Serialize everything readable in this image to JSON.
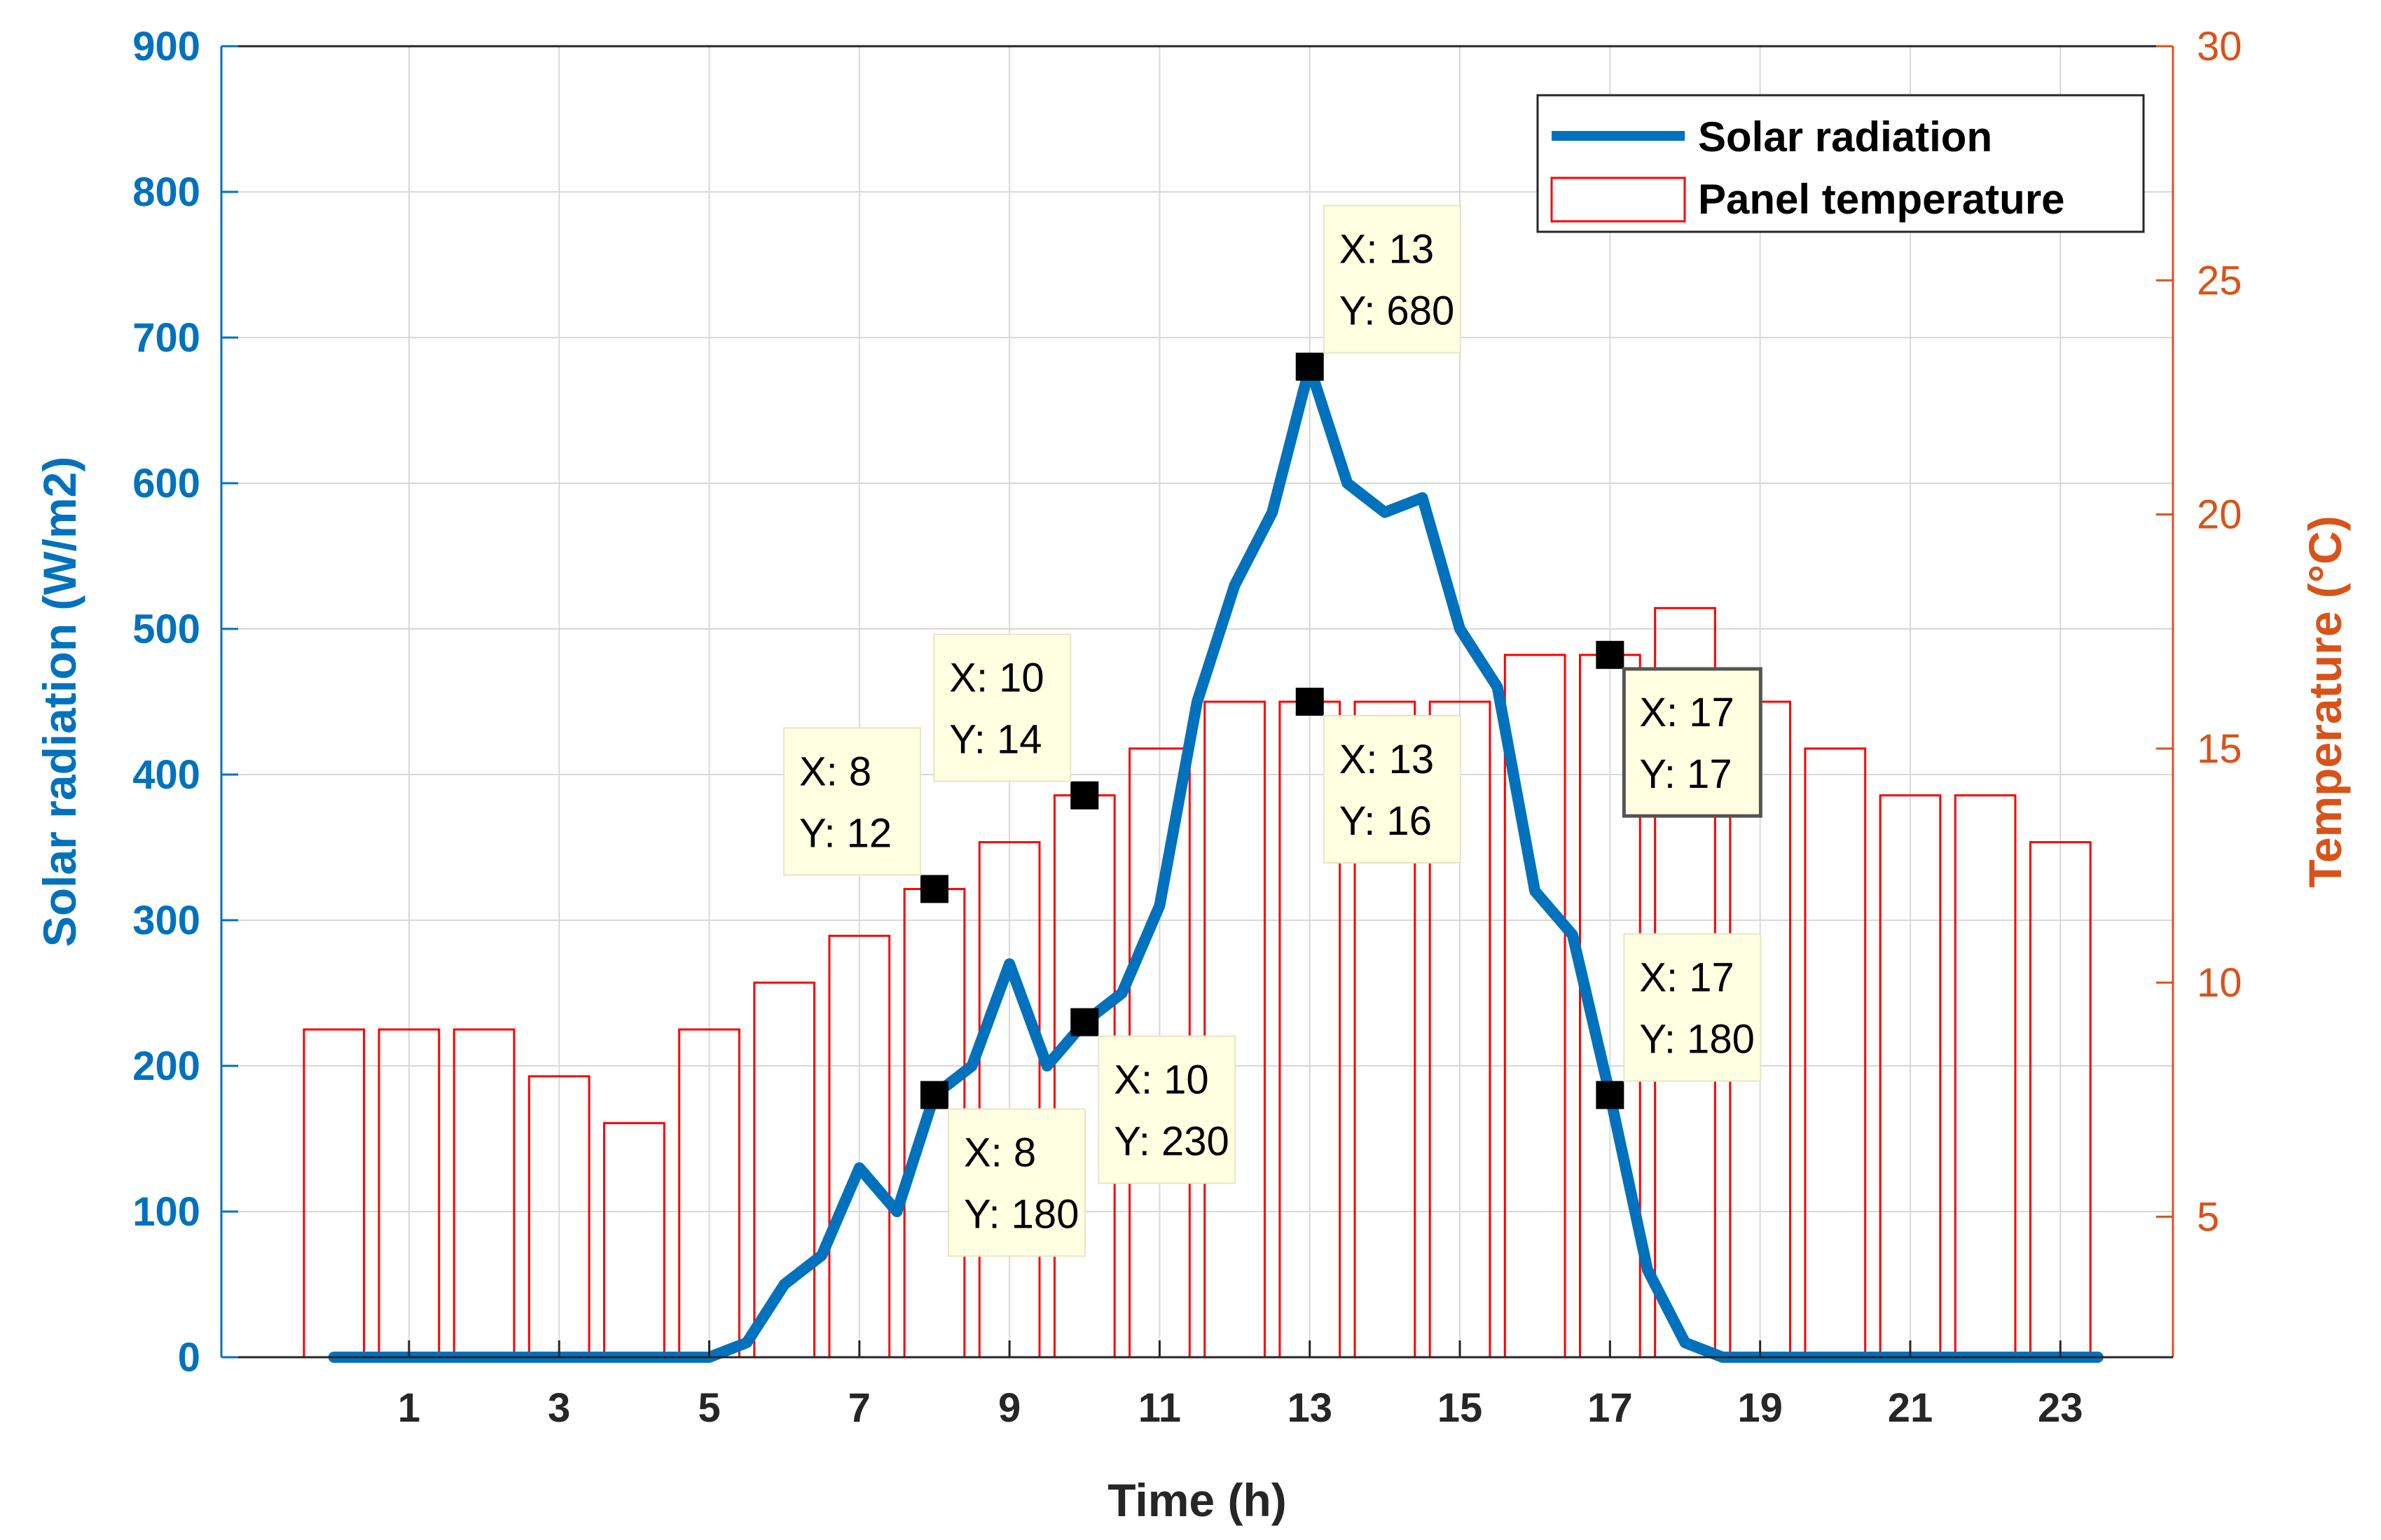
{
  "colors": {
    "radiation": "#0072BD",
    "temperature": "#D95319",
    "bars": "#FF0000",
    "grid": "#D8D8D8",
    "axis": "#262626",
    "tip_bg": "#FFFFE1"
  },
  "chart_data": {
    "type": "bar+line",
    "xlabel": "Time (h)",
    "x_ticks": [
      "1",
      "3",
      "5",
      "7",
      "9",
      "11",
      "13",
      "15",
      "17",
      "19",
      "21",
      "23"
    ],
    "xlim": [
      -1.5,
      24.5
    ],
    "left_axis": {
      "label": "Solar radiation  (W/m2)",
      "ylim": [
        0,
        900
      ],
      "ticks": [
        "0",
        "100",
        "200",
        "300",
        "400",
        "500",
        "600",
        "700",
        "800",
        "900"
      ]
    },
    "right_axis": {
      "label": "Temperature (°C)",
      "ylim": [
        2,
        30
      ],
      "ticks": [
        "5",
        "10",
        "15",
        "20",
        "25",
        "30"
      ]
    },
    "series": [
      {
        "name": "Solar radiation",
        "type": "line",
        "axis": "left",
        "x": [
          0,
          1,
          2,
          3,
          4,
          5,
          5.5,
          6,
          6.5,
          7,
          7.5,
          8,
          8.5,
          9,
          9.5,
          10,
          10.5,
          11,
          11.5,
          12,
          12.5,
          13,
          13.5,
          14,
          14.5,
          15,
          15.5,
          16,
          16.5,
          17,
          17.5,
          18,
          18.5,
          19,
          20,
          21,
          22,
          23,
          23.5
        ],
        "values": [
          0,
          0,
          0,
          0,
          0,
          0,
          10,
          50,
          70,
          130,
          100,
          180,
          200,
          270,
          200,
          230,
          250,
          310,
          450,
          530,
          580,
          680,
          600,
          580,
          590,
          500,
          460,
          320,
          290,
          180,
          60,
          10,
          0,
          0,
          0,
          0,
          0,
          0,
          0
        ]
      },
      {
        "name": "Panel temperature",
        "type": "bar",
        "axis": "right",
        "x": [
          0,
          1,
          2,
          3,
          4,
          5,
          6,
          7,
          8,
          9,
          10,
          11,
          12,
          13,
          14,
          15,
          16,
          17,
          18,
          19,
          20,
          21,
          22,
          23
        ],
        "values": [
          9,
          9,
          9,
          8,
          7,
          9,
          10,
          11,
          12,
          13,
          14,
          15,
          16,
          16,
          16,
          16,
          17,
          17,
          18,
          16,
          15,
          14,
          14,
          13
        ]
      }
    ],
    "legend": {
      "position": "top-right",
      "entries": [
        "Solar radiation",
        "Panel temperature"
      ]
    },
    "data_tips": [
      {
        "series": "Solar radiation",
        "x": 13,
        "y": 680,
        "label_x": "X: 13",
        "label_y": "Y: 680",
        "placement": "above-right"
      },
      {
        "series": "Panel temperature",
        "x": 10,
        "y": 14,
        "label_x": "X: 10",
        "label_y": "Y: 14",
        "placement": "above-left"
      },
      {
        "series": "Panel temperature",
        "x": 8,
        "y": 12,
        "label_x": "X: 8",
        "label_y": "Y: 12",
        "placement": "above-left"
      },
      {
        "series": "Panel temperature",
        "x": 13,
        "y": 16,
        "label_x": "X: 13",
        "label_y": "Y: 16",
        "placement": "below-right"
      },
      {
        "series": "Panel temperature",
        "x": 17,
        "y": 17,
        "label_x": "X: 17",
        "label_y": "Y: 17",
        "placement": "below-right",
        "selected": true
      },
      {
        "series": "Solar radiation",
        "x": 17,
        "y": 180,
        "label_x": "X: 17",
        "label_y": "Y: 180",
        "placement": "above-right"
      },
      {
        "series": "Solar radiation",
        "x": 10,
        "y": 230,
        "label_x": "X: 10",
        "label_y": "Y: 230",
        "placement": "below-right"
      },
      {
        "series": "Solar radiation",
        "x": 8,
        "y": 180,
        "label_x": "X: 8",
        "label_y": "Y: 180",
        "placement": "below-right"
      }
    ]
  }
}
